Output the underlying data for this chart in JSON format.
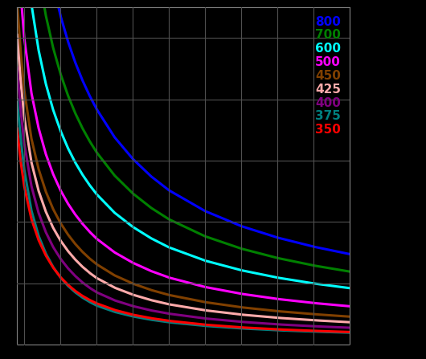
{
  "background_color": "#000000",
  "plot_bg_color": "#000000",
  "grid_color": "#505050",
  "series": [
    {
      "label": "800",
      "color": "#0000ff",
      "T_C": 800
    },
    {
      "label": "700",
      "color": "#008000",
      "T_C": 700
    },
    {
      "label": "600",
      "color": "#00ffff",
      "T_C": 600
    },
    {
      "label": "500",
      "color": "#ff00ff",
      "T_C": 500
    },
    {
      "label": "450",
      "color": "#804000",
      "T_C": 450
    },
    {
      "label": "425",
      "color": "#ffaaaa",
      "T_C": 425
    },
    {
      "label": "400",
      "color": "#800080",
      "T_C": 400
    },
    {
      "label": "375",
      "color": "#008080",
      "T_C": 375
    },
    {
      "label": "350",
      "color": "#ff0000",
      "T_C": 350
    }
  ],
  "p_min": 80,
  "p_max": 1000,
  "v_min": 0.0,
  "v_max": 0.055,
  "legend_fontsize": 11,
  "tick_color": "#000000",
  "spine_color": "#808080",
  "linewidth": 2.2
}
